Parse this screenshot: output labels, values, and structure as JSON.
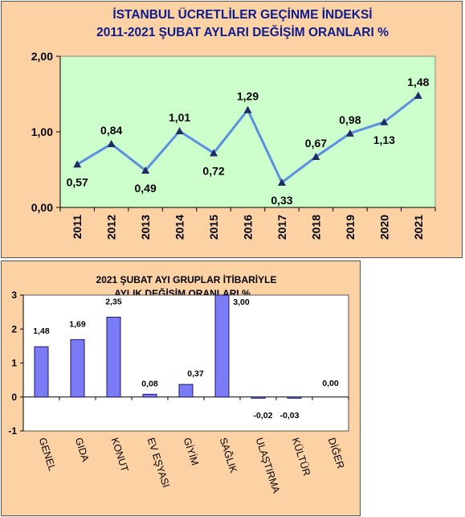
{
  "chart_data": [
    {
      "type": "line",
      "title": "İSTANBUL ÜCRETLİLER GEÇİNME İNDEKSİ",
      "subtitle": "2011-2021  ŞUBAT AYLARI DEĞİŞİM ORANLARI %",
      "categories": [
        "2011",
        "2012",
        "2013",
        "2014",
        "2015",
        "2016",
        "2017",
        "2018",
        "2019",
        "2020",
        "2021"
      ],
      "values": [
        0.57,
        0.84,
        0.49,
        1.01,
        0.72,
        1.29,
        0.33,
        0.67,
        0.98,
        1.13,
        1.48
      ],
      "value_labels": [
        "0,57",
        "0,84",
        "0,49",
        "1,01",
        "0,72",
        "1,29",
        "0,33",
        "0,67",
        "0,98",
        "1,13",
        "1,48"
      ],
      "yticks": [
        {
          "value": 0,
          "label": "0,00"
        },
        {
          "value": 1,
          "label": "1,00"
        },
        {
          "value": 2,
          "label": "2,00"
        }
      ],
      "ylim": [
        0,
        2
      ],
      "grid": false,
      "plot_background": "#ccffcc",
      "line_color": "#5b8fe0",
      "marker_color": "#1f2b66"
    },
    {
      "type": "bar",
      "title": "2021 ŞUBAT AYI  GRUPLAR İTİBARİYLE",
      "subtitle": "AYLIK DEĞİŞİM  ORANLARI  %",
      "categories": [
        "GENEL",
        "GIDA",
        "KONUT",
        "EV EŞYASI",
        "GİYİM",
        "SAĞLIK",
        "ULAŞTIRMA",
        "KÜLTÜR",
        "DİĞER"
      ],
      "values": [
        1.48,
        1.69,
        2.35,
        0.08,
        0.37,
        3.0,
        -0.02,
        -0.03,
        0.0
      ],
      "value_labels": [
        "1,48",
        "1,69",
        "2,35",
        "0,08",
        "0,37",
        "3,00",
        "-0,02",
        "-0,03",
        "0,00"
      ],
      "yticks": [
        {
          "value": -1,
          "label": "-1"
        },
        {
          "value": 0,
          "label": "0"
        },
        {
          "value": 1,
          "label": "1"
        },
        {
          "value": 2,
          "label": "2"
        },
        {
          "value": 3,
          "label": "3"
        }
      ],
      "ylim": [
        -1,
        3
      ],
      "grid": false,
      "plot_background": "#ffffff",
      "bar_color": "#7b7bf5",
      "bar_edge_color": "#1a1a66"
    }
  ]
}
